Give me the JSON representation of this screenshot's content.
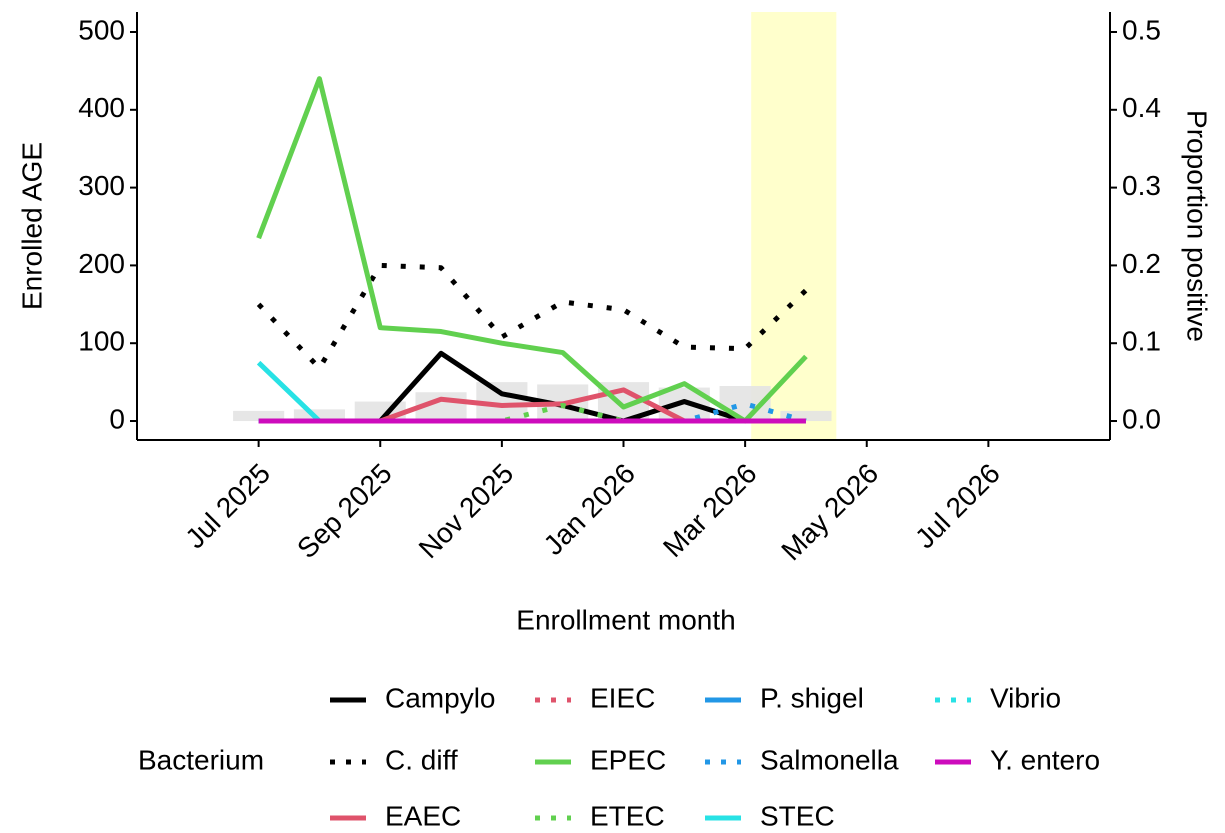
{
  "chart_data": {
    "type": "line",
    "x_label": "Enrollment month",
    "y_label": "Enrolled AGE",
    "y2_label": "Proportion positive",
    "legend_title": "Bacterium",
    "x": [
      "2025-07",
      "2025-08",
      "2025-09",
      "2025-10",
      "2025-11",
      "2025-12",
      "2026-01",
      "2026-02",
      "2026-03",
      "2026-04"
    ],
    "xlim": [
      "2025-05",
      "2026-09"
    ],
    "xticks": [
      {
        "value": "2025-07",
        "label": "Jul 2025"
      },
      {
        "value": "2025-09",
        "label": "Sep 2025"
      },
      {
        "value": "2025-11",
        "label": "Nov 2025"
      },
      {
        "value": "2026-01",
        "label": "Jan 2026"
      },
      {
        "value": "2026-03",
        "label": "Mar 2026"
      },
      {
        "value": "2026-05",
        "label": "May 2026"
      },
      {
        "value": "2026-07",
        "label": "Jul 2026"
      }
    ],
    "ylim": [
      -24.4,
      525.7
    ],
    "yticks": [
      0,
      100,
      200,
      300,
      400,
      500
    ],
    "y2lim": [
      -0.0244,
      0.5257
    ],
    "y2ticks": [
      {
        "value": 0,
        "label": "0.0"
      },
      0.1,
      0.2,
      0.3,
      0.4,
      0.5
    ],
    "highlight": {
      "x": [
        "2026-03",
        "2026-04"
      ],
      "color": "#ffffcc"
    },
    "bars": {
      "color": "#e3e3e3",
      "values": [
        13,
        15,
        25,
        37,
        50,
        47,
        50,
        43,
        45,
        13
      ]
    },
    "series": [
      {
        "name": "Campylo",
        "color": "#000000",
        "dash": "solid",
        "axis": "y2",
        "values": [
          0,
          0,
          0,
          0.087,
          0.035,
          0.02,
          0,
          0.025,
          0,
          null
        ]
      },
      {
        "name": "C. diff",
        "color": "#000000",
        "dash": "dotted",
        "axis": "y2",
        "values": [
          0.15,
          0.068,
          0.2,
          0.197,
          0.108,
          0.153,
          0.143,
          0.095,
          0.093,
          0.168
        ]
      },
      {
        "name": "EAEC",
        "color": "#df536b",
        "dash": "solid",
        "axis": "y2",
        "values": [
          0,
          0,
          0,
          0.028,
          0.02,
          0.022,
          0.04,
          0,
          0,
          0
        ]
      },
      {
        "name": "EIEC",
        "color": "#df536b",
        "dash": "dotted",
        "axis": "y2",
        "values": [
          0,
          0,
          0,
          0,
          0,
          0,
          0,
          0,
          0,
          0
        ]
      },
      {
        "name": "EPEC",
        "color": "#61d04f",
        "dash": "solid",
        "axis": "y2",
        "values": [
          0.235,
          0.44,
          0.12,
          0.115,
          0.1,
          0.088,
          0.018,
          0.048,
          0,
          0.083
        ]
      },
      {
        "name": "ETEC",
        "color": "#61d04f",
        "dash": "dotted",
        "axis": "y2",
        "values": [
          0,
          0,
          0,
          0,
          0,
          0.02,
          0,
          0,
          0,
          0
        ]
      },
      {
        "name": "P. shigel",
        "color": "#2297e6",
        "dash": "solid",
        "axis": "y2",
        "values": [
          0,
          0,
          0,
          0,
          0,
          0,
          0,
          0,
          0,
          0
        ]
      },
      {
        "name": "Salmonella",
        "color": "#2297e6",
        "dash": "dotted",
        "axis": "y2",
        "values": [
          0,
          0,
          0,
          0,
          0,
          0,
          0,
          0,
          0.022,
          0
        ]
      },
      {
        "name": "STEC",
        "color": "#28e2e5",
        "dash": "solid",
        "axis": "y2",
        "values": [
          0.075,
          0,
          0,
          0,
          0,
          0,
          0,
          0,
          0,
          0
        ]
      },
      {
        "name": "Vibrio",
        "color": "#28e2e5",
        "dash": "dotted",
        "axis": "y2",
        "values": [
          0,
          0,
          0,
          0,
          0,
          0,
          0,
          0,
          0,
          0
        ]
      },
      {
        "name": "Y. entero",
        "color": "#cd0bbc",
        "dash": "solid",
        "axis": "y2",
        "values": [
          0,
          0,
          0,
          0,
          0,
          0,
          0,
          0,
          0,
          0
        ]
      }
    ]
  }
}
